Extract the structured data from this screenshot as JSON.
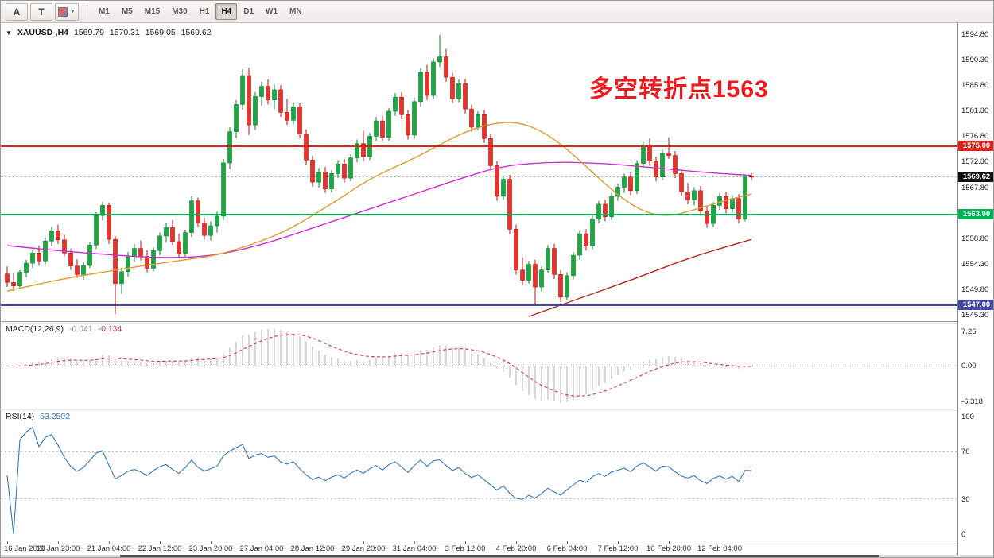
{
  "toolbar": {
    "tools": [
      {
        "label": "A"
      },
      {
        "label": "T"
      }
    ],
    "timeframes": [
      "M1",
      "M5",
      "M15",
      "M30",
      "H1",
      "H4",
      "D1",
      "W1",
      "MN"
    ],
    "active_timeframe": "H4"
  },
  "chart": {
    "symbol_label": "XAUUSD-,H4",
    "ohlc": {
      "open": "1569.79",
      "high": "1570.31",
      "low": "1569.05",
      "close": "1569.62"
    },
    "annotation": {
      "text": "多空转折点1563",
      "color": "#ee1a1d"
    }
  },
  "macd": {
    "label": "MACD(12,26,9)",
    "value_main": "-0.041",
    "value_signal": "-0.134",
    "axis_labels": [
      "7.26",
      "0.00",
      "-6.318"
    ]
  },
  "rsi": {
    "label": "RSI(14)",
    "value": "53.2502",
    "axis_labels": [
      "100",
      "70",
      "30",
      "0"
    ],
    "levels": [
      70,
      30
    ]
  },
  "chart_data": {
    "type": "candlestick",
    "symbol": "XAUUSD-",
    "timeframe": "H4",
    "y_axis_ticks": [
      1594.8,
      1590.3,
      1585.8,
      1581.3,
      1576.8,
      1572.3,
      1567.8,
      1563.3,
      1558.8,
      1554.3,
      1549.8,
      1545.3
    ],
    "hlines": [
      {
        "price": 1575.0,
        "label": "1575.00",
        "color": "#dc241c"
      },
      {
        "price": 1563.0,
        "label": "1563.00",
        "color": "#00b456"
      },
      {
        "price": 1547.0,
        "label": "1547.00",
        "color": "#4547a5"
      }
    ],
    "current_price": {
      "value": 1569.62,
      "label": "1569.62",
      "color": "#111111"
    },
    "time_labels": [
      "16 Jan 2020",
      "19 Jan 23:00",
      "21 Jan 04:00",
      "22 Jan 12:00",
      "23 Jan 20:00",
      "27 Jan 04:00",
      "28 Jan 12:00",
      "29 Jan 20:00",
      "31 Jan 04:00",
      "3 Feb 12:00",
      "4 Feb 20:00",
      "6 Feb 04:00",
      "7 Feb 12:00",
      "10 Feb 20:00",
      "12 Feb 04:00"
    ],
    "label_every_n_candles": 8,
    "candles_ohlc": [
      [
        1552.5,
        1553.8,
        1550.2,
        1551.0
      ],
      [
        1551.0,
        1552.6,
        1549.5,
        1550.4
      ],
      [
        1550.4,
        1553.2,
        1549.8,
        1552.8
      ],
      [
        1552.8,
        1555.0,
        1551.9,
        1554.4
      ],
      [
        1554.4,
        1556.8,
        1553.6,
        1556.2
      ],
      [
        1556.2,
        1557.5,
        1554.0,
        1554.8
      ],
      [
        1554.8,
        1558.9,
        1554.2,
        1558.3
      ],
      [
        1558.3,
        1560.8,
        1557.4,
        1560.1
      ],
      [
        1560.1,
        1561.2,
        1557.8,
        1558.5
      ],
      [
        1558.5,
        1559.4,
        1555.6,
        1556.2
      ],
      [
        1556.2,
        1557.0,
        1553.2,
        1553.9
      ],
      [
        1553.9,
        1555.1,
        1551.8,
        1552.4
      ],
      [
        1552.4,
        1554.6,
        1551.5,
        1554.0
      ],
      [
        1554.0,
        1558.2,
        1553.5,
        1557.6
      ],
      [
        1557.6,
        1563.4,
        1556.9,
        1562.8
      ],
      [
        1562.8,
        1565.2,
        1561.9,
        1564.6
      ],
      [
        1564.6,
        1565.0,
        1557.8,
        1558.6
      ],
      [
        1558.6,
        1559.2,
        1545.4,
        1550.8
      ],
      [
        1550.8,
        1553.6,
        1549.0,
        1552.9
      ],
      [
        1552.9,
        1556.4,
        1552.0,
        1555.7
      ],
      [
        1555.7,
        1557.8,
        1554.6,
        1557.0
      ],
      [
        1557.0,
        1558.4,
        1554.9,
        1555.6
      ],
      [
        1555.6,
        1556.8,
        1552.8,
        1553.5
      ],
      [
        1553.5,
        1557.2,
        1553.0,
        1556.6
      ],
      [
        1556.6,
        1559.8,
        1555.8,
        1559.2
      ],
      [
        1559.2,
        1561.5,
        1558.0,
        1560.7
      ],
      [
        1560.7,
        1562.0,
        1557.6,
        1558.2
      ],
      [
        1558.2,
        1559.6,
        1555.4,
        1556.1
      ],
      [
        1556.1,
        1560.3,
        1555.5,
        1559.8
      ],
      [
        1559.8,
        1566.2,
        1559.0,
        1565.4
      ],
      [
        1565.4,
        1566.0,
        1560.8,
        1561.5
      ],
      [
        1561.5,
        1562.4,
        1558.6,
        1559.3
      ],
      [
        1559.3,
        1561.8,
        1558.4,
        1561.0
      ],
      [
        1561.0,
        1563.5,
        1559.8,
        1562.7
      ],
      [
        1562.7,
        1572.8,
        1562.0,
        1572.1
      ],
      [
        1572.1,
        1578.4,
        1571.0,
        1577.6
      ],
      [
        1577.6,
        1583.2,
        1576.5,
        1582.4
      ],
      [
        1582.4,
        1588.6,
        1581.5,
        1587.5
      ],
      [
        1587.5,
        1588.9,
        1577.0,
        1578.8
      ],
      [
        1578.8,
        1584.6,
        1577.9,
        1583.8
      ],
      [
        1583.8,
        1586.4,
        1582.2,
        1585.6
      ],
      [
        1585.6,
        1586.8,
        1582.4,
        1583.2
      ],
      [
        1583.2,
        1585.9,
        1581.6,
        1585.0
      ],
      [
        1585.0,
        1585.8,
        1580.2,
        1581.0
      ],
      [
        1581.0,
        1583.4,
        1578.8,
        1579.6
      ],
      [
        1579.6,
        1582.8,
        1578.9,
        1582.0
      ],
      [
        1582.0,
        1582.6,
        1576.4,
        1577.2
      ],
      [
        1577.2,
        1578.0,
        1571.8,
        1572.6
      ],
      [
        1572.6,
        1573.4,
        1567.9,
        1568.7
      ],
      [
        1568.7,
        1571.2,
        1567.6,
        1570.5
      ],
      [
        1570.5,
        1571.4,
        1566.8,
        1567.5
      ],
      [
        1567.5,
        1570.8,
        1566.9,
        1570.2
      ],
      [
        1570.2,
        1572.6,
        1569.4,
        1571.9
      ],
      [
        1571.9,
        1572.8,
        1568.6,
        1569.4
      ],
      [
        1569.4,
        1573.6,
        1568.8,
        1573.0
      ],
      [
        1573.0,
        1576.2,
        1572.2,
        1575.5
      ],
      [
        1575.5,
        1577.8,
        1572.4,
        1573.2
      ],
      [
        1573.2,
        1577.4,
        1572.6,
        1576.8
      ],
      [
        1576.8,
        1580.2,
        1576.0,
        1579.5
      ],
      [
        1579.5,
        1580.4,
        1575.8,
        1576.6
      ],
      [
        1576.6,
        1581.8,
        1576.0,
        1581.2
      ],
      [
        1581.2,
        1584.4,
        1580.4,
        1583.7
      ],
      [
        1583.7,
        1584.6,
        1579.8,
        1580.6
      ],
      [
        1580.6,
        1581.4,
        1576.2,
        1577.0
      ],
      [
        1577.0,
        1583.6,
        1576.4,
        1582.9
      ],
      [
        1582.9,
        1588.8,
        1582.0,
        1588.1
      ],
      [
        1588.1,
        1589.4,
        1583.2,
        1584.0
      ],
      [
        1584.0,
        1590.6,
        1583.4,
        1589.9
      ],
      [
        1589.9,
        1594.7,
        1589.0,
        1590.8
      ],
      [
        1590.8,
        1592.2,
        1586.4,
        1587.2
      ],
      [
        1587.2,
        1588.0,
        1582.6,
        1583.4
      ],
      [
        1583.4,
        1586.8,
        1582.8,
        1586.1
      ],
      [
        1586.1,
        1586.9,
        1580.8,
        1581.6
      ],
      [
        1581.6,
        1582.4,
        1577.6,
        1578.4
      ],
      [
        1578.4,
        1581.2,
        1577.8,
        1580.6
      ],
      [
        1580.6,
        1581.4,
        1575.6,
        1576.4
      ],
      [
        1576.4,
        1577.2,
        1570.8,
        1571.6
      ],
      [
        1571.6,
        1572.4,
        1565.4,
        1566.2
      ],
      [
        1566.2,
        1569.8,
        1565.6,
        1569.2
      ],
      [
        1569.2,
        1570.0,
        1559.6,
        1560.4
      ],
      [
        1560.4,
        1561.2,
        1552.4,
        1553.2
      ],
      [
        1553.2,
        1555.4,
        1550.6,
        1551.4
      ],
      [
        1551.4,
        1554.8,
        1550.8,
        1554.2
      ],
      [
        1554.2,
        1555.0,
        1546.8,
        1550.2
      ],
      [
        1550.2,
        1553.8,
        1549.4,
        1553.2
      ],
      [
        1553.2,
        1557.6,
        1552.6,
        1557.0
      ],
      [
        1557.0,
        1557.8,
        1551.6,
        1552.4
      ],
      [
        1552.4,
        1553.2,
        1547.6,
        1548.4
      ],
      [
        1548.4,
        1552.8,
        1547.9,
        1552.2
      ],
      [
        1552.2,
        1556.4,
        1551.6,
        1555.8
      ],
      [
        1555.8,
        1560.2,
        1555.0,
        1559.6
      ],
      [
        1559.6,
        1560.4,
        1556.6,
        1557.4
      ],
      [
        1557.4,
        1562.8,
        1556.8,
        1562.2
      ],
      [
        1562.2,
        1565.4,
        1561.4,
        1564.8
      ],
      [
        1564.8,
        1565.6,
        1561.8,
        1562.6
      ],
      [
        1562.6,
        1566.8,
        1562.0,
        1566.2
      ],
      [
        1566.2,
        1568.4,
        1565.4,
        1567.8
      ],
      [
        1567.8,
        1570.2,
        1566.8,
        1569.6
      ],
      [
        1569.6,
        1570.4,
        1566.4,
        1567.2
      ],
      [
        1567.2,
        1572.6,
        1566.6,
        1572.0
      ],
      [
        1572.0,
        1575.8,
        1571.2,
        1575.2
      ],
      [
        1575.2,
        1576.4,
        1571.6,
        1572.4
      ],
      [
        1572.4,
        1573.2,
        1568.8,
        1569.6
      ],
      [
        1569.6,
        1574.4,
        1569.0,
        1573.8
      ],
      [
        1573.8,
        1576.6,
        1572.8,
        1573.4
      ],
      [
        1573.4,
        1574.2,
        1569.4,
        1570.2
      ],
      [
        1570.2,
        1571.0,
        1566.2,
        1567.0
      ],
      [
        1567.0,
        1568.6,
        1564.8,
        1565.6
      ],
      [
        1565.6,
        1567.8,
        1564.6,
        1567.2
      ],
      [
        1567.2,
        1568.0,
        1562.8,
        1563.6
      ],
      [
        1563.6,
        1564.4,
        1560.6,
        1561.4
      ],
      [
        1561.4,
        1565.2,
        1560.8,
        1564.6
      ],
      [
        1564.6,
        1566.8,
        1563.8,
        1566.2
      ],
      [
        1566.2,
        1567.0,
        1563.2,
        1564.0
      ],
      [
        1564.0,
        1566.4,
        1563.4,
        1565.8
      ],
      [
        1565.8,
        1566.6,
        1561.4,
        1562.2
      ],
      [
        1562.2,
        1570.0,
        1561.8,
        1569.8
      ],
      [
        1569.79,
        1570.31,
        1569.05,
        1569.62
      ]
    ],
    "overlays": [
      {
        "name": "ma-magenta",
        "color": "#cc2fcc",
        "points": [
          [
            0,
            1557.5
          ],
          [
            8,
            1556.6
          ],
          [
            16,
            1555.9
          ],
          [
            24,
            1555.3
          ],
          [
            32,
            1555.6
          ],
          [
            40,
            1557.6
          ],
          [
            48,
            1560.6
          ],
          [
            56,
            1563.6
          ],
          [
            64,
            1566.6
          ],
          [
            72,
            1569.6
          ],
          [
            78,
            1571.6
          ],
          [
            86,
            1572.3
          ],
          [
            94,
            1572.0
          ],
          [
            100,
            1571.4
          ],
          [
            106,
            1570.8
          ],
          [
            112,
            1570.2
          ],
          [
            117,
            1569.9
          ]
        ]
      },
      {
        "name": "ma-orange",
        "color": "#e09a30",
        "points": [
          [
            0,
            1549.5
          ],
          [
            8,
            1551.5
          ],
          [
            16,
            1553.0
          ],
          [
            24,
            1554.4
          ],
          [
            32,
            1555.6
          ],
          [
            36,
            1556.8
          ],
          [
            40,
            1558.3
          ],
          [
            44,
            1560.2
          ],
          [
            48,
            1562.8
          ],
          [
            52,
            1565.6
          ],
          [
            56,
            1568.6
          ],
          [
            60,
            1570.9
          ],
          [
            64,
            1572.9
          ],
          [
            68,
            1575.3
          ],
          [
            72,
            1577.6
          ],
          [
            76,
            1579.0
          ],
          [
            80,
            1579.4
          ],
          [
            84,
            1577.8
          ],
          [
            88,
            1574.6
          ],
          [
            92,
            1570.4
          ],
          [
            96,
            1566.4
          ],
          [
            100,
            1563.4
          ],
          [
            104,
            1562.6
          ],
          [
            108,
            1563.8
          ],
          [
            112,
            1565.2
          ],
          [
            117,
            1566.6
          ]
        ]
      },
      {
        "name": "ma-darkred",
        "color": "#b22a22",
        "points": [
          [
            82,
            1545.0
          ],
          [
            86,
            1546.6
          ],
          [
            90,
            1548.2
          ],
          [
            94,
            1549.8
          ],
          [
            98,
            1551.4
          ],
          [
            102,
            1553.1
          ],
          [
            106,
            1554.8
          ],
          [
            110,
            1556.3
          ],
          [
            114,
            1557.6
          ],
          [
            117,
            1558.6
          ]
        ]
      }
    ],
    "indicators": {
      "macd": {
        "fast": 12,
        "slow": 26,
        "signal": 9,
        "hist_color": "#bcbcbc",
        "signal_color": "#d23a3a"
      },
      "rsi": {
        "period": 14,
        "color": "#3279b7"
      }
    },
    "colors": {
      "up": "#1da741",
      "up_border": "#0e7e2c",
      "down": "#e5342c",
      "down_border": "#b3160f",
      "background": "#ffffff",
      "axis_text": "#1a1a1a"
    }
  }
}
